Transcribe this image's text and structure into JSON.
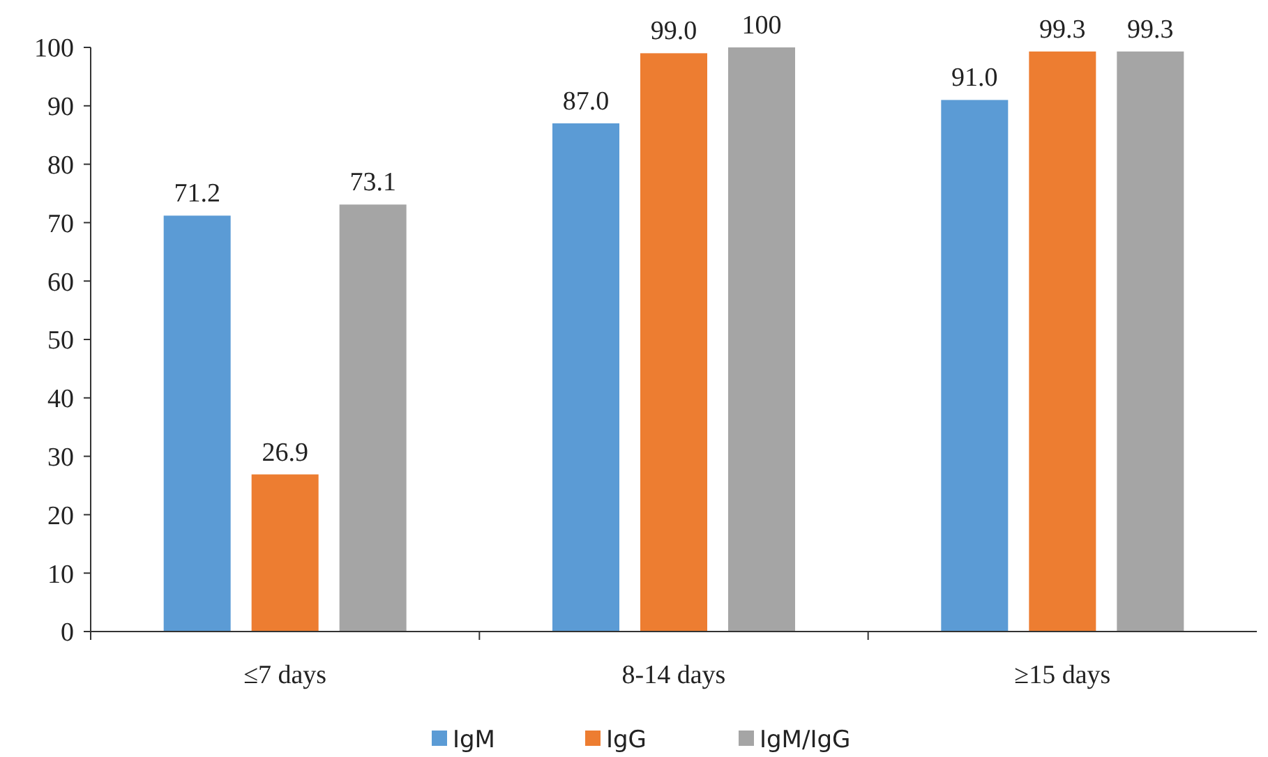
{
  "chart_data": {
    "type": "bar",
    "categories": [
      "≤7 days",
      "8-14 days",
      "≥15 days"
    ],
    "series": [
      {
        "name": "IgM",
        "color": "#5b9bd5",
        "values": [
          71.2,
          87.0,
          91.0
        ],
        "value_labels": [
          "71.2",
          "87.0",
          "91.0"
        ]
      },
      {
        "name": "IgG",
        "color": "#ed7d31",
        "values": [
          26.9,
          99.0,
          99.3
        ],
        "value_labels": [
          "26.9",
          "99.0",
          "99.3"
        ]
      },
      {
        "name": "IgM/IgG",
        "color": "#a5a5a5",
        "values": [
          73.1,
          100,
          99.3
        ],
        "value_labels": [
          "73.1",
          "100",
          "99.3"
        ]
      }
    ],
    "ylim": [
      0,
      100
    ],
    "yticks": [
      0,
      10,
      20,
      30,
      40,
      50,
      60,
      70,
      80,
      90,
      100
    ],
    "grid": false,
    "legend": "bottom"
  }
}
